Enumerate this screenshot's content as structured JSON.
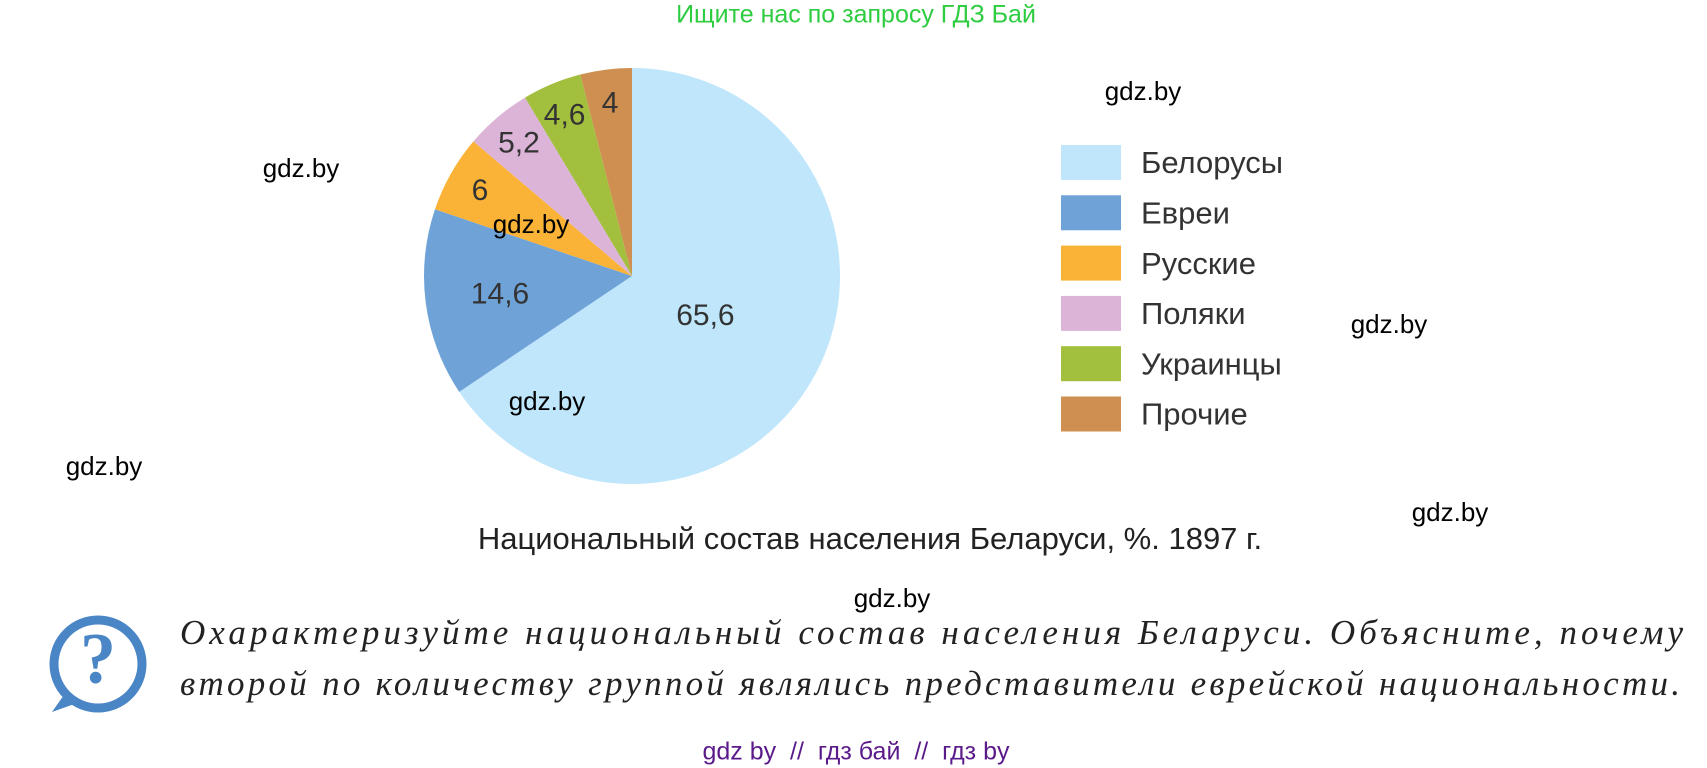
{
  "header": "Ищите нас по запросу ГДЗ Бай",
  "chart_data": {
    "type": "pie",
    "title": "Национальный состав населения Беларуси, %. 1897 г.",
    "categories": [
      "Белорусы",
      "Евреи",
      "Русские",
      "Поляки",
      "Украинцы",
      "Прочие"
    ],
    "values": [
      65.6,
      14.6,
      6,
      5.2,
      4.6,
      4
    ],
    "value_labels": [
      "65,6",
      "14,6",
      "6",
      "5,2",
      "4,6",
      "4"
    ],
    "colors": [
      "#bfe6fb",
      "#6fa3d8",
      "#fbb337",
      "#dcb4d8",
      "#a3bf3e",
      "#cf8f50"
    ],
    "legend": "right"
  },
  "watermarks": [
    "gdz.by",
    "gdz.by",
    "gdz.by",
    "gdz.by",
    "gdz.by",
    "gdz.by",
    "gdz.by",
    "gdz.by"
  ],
  "question": [
    "Охарактеризуйте национальный состав населения Беларуси. Объясните, почему",
    "второй по количеству группой являлись представители еврейской национальности."
  ],
  "footer": "gdz by  //  гдз бай  //  гдз by"
}
